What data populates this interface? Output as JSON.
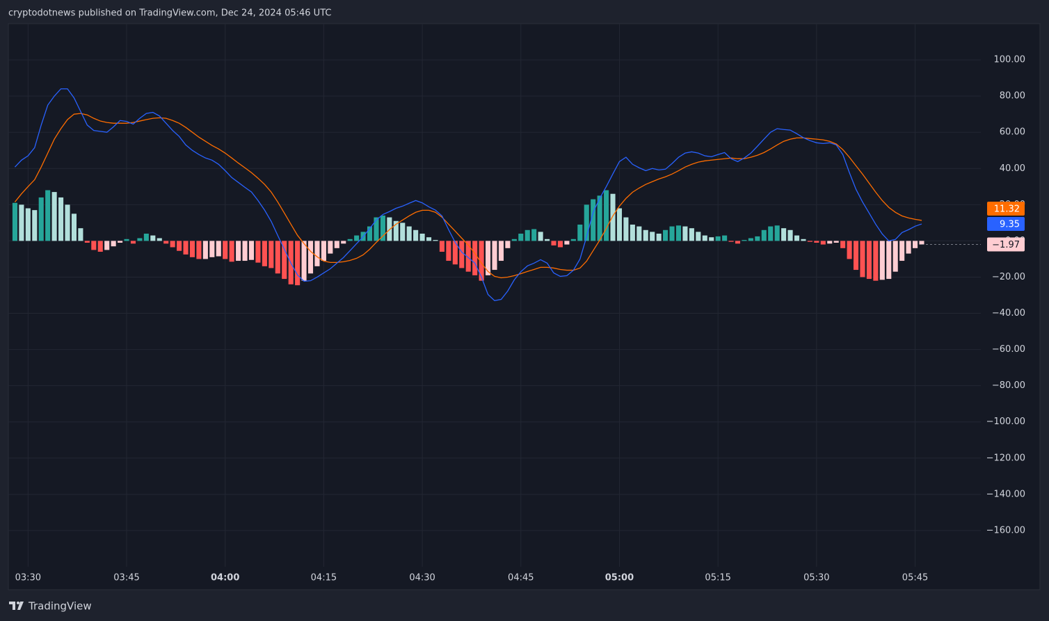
{
  "header": {
    "text": "cryptodotnews published on TradingView.com, Dec 24, 2024 05:46 UTC"
  },
  "footer": {
    "brand": "TradingView"
  },
  "chart_data": {
    "type": "combo",
    "x": [
      "03:28",
      "03:29",
      "03:30",
      "03:31",
      "03:32",
      "03:33",
      "03:34",
      "03:35",
      "03:36",
      "03:37",
      "03:38",
      "03:39",
      "03:40",
      "03:41",
      "03:42",
      "03:43",
      "03:44",
      "03:45",
      "03:46",
      "03:47",
      "03:48",
      "03:49",
      "03:50",
      "03:51",
      "03:52",
      "03:53",
      "03:54",
      "03:55",
      "03:56",
      "03:57",
      "03:58",
      "03:59",
      "04:00",
      "04:01",
      "04:02",
      "04:03",
      "04:04",
      "04:05",
      "04:06",
      "04:07",
      "04:08",
      "04:09",
      "04:10",
      "04:11",
      "04:12",
      "04:13",
      "04:14",
      "04:15",
      "04:16",
      "04:17",
      "04:18",
      "04:19",
      "04:20",
      "04:21",
      "04:22",
      "04:23",
      "04:24",
      "04:25",
      "04:26",
      "04:27",
      "04:28",
      "04:29",
      "04:30",
      "04:31",
      "04:32",
      "04:33",
      "04:34",
      "04:35",
      "04:36",
      "04:37",
      "04:38",
      "04:39",
      "04:40",
      "04:41",
      "04:42",
      "04:43",
      "04:44",
      "04:45",
      "04:46",
      "04:47",
      "04:48",
      "04:49",
      "04:50",
      "04:51",
      "04:52",
      "04:53",
      "04:54",
      "04:55",
      "04:56",
      "04:57",
      "04:58",
      "04:59",
      "05:00",
      "05:01",
      "05:02",
      "05:03",
      "05:04",
      "05:05",
      "05:06",
      "05:07",
      "05:08",
      "05:09",
      "05:10",
      "05:11",
      "05:12",
      "05:13",
      "05:14",
      "05:15",
      "05:16",
      "05:17",
      "05:18",
      "05:19",
      "05:20",
      "05:21",
      "05:22",
      "05:23",
      "05:24",
      "05:25",
      "05:26",
      "05:27",
      "05:28",
      "05:29",
      "05:30",
      "05:31",
      "05:32",
      "05:33",
      "05:34",
      "05:35",
      "05:36",
      "05:37",
      "05:38",
      "05:39",
      "05:40",
      "05:41",
      "05:42",
      "05:43",
      "05:44",
      "05:45",
      "05:46"
    ],
    "xlim": [
      "03:27",
      "05:55"
    ],
    "xticks": [
      "03:30",
      "03:45",
      "04:00",
      "04:15",
      "04:30",
      "04:45",
      "05:00",
      "05:15",
      "05:30",
      "05:45"
    ],
    "ylim": [
      -180,
      120
    ],
    "yticks": [
      {
        "value": 100,
        "label": "100.00"
      },
      {
        "value": 80,
        "label": "80.00"
      },
      {
        "value": 60,
        "label": "60.00"
      },
      {
        "value": 40,
        "label": "40.00"
      },
      {
        "value": 20,
        "label": "20.00"
      },
      {
        "value": 0,
        "label": "0.00"
      },
      {
        "value": -20,
        "label": "−20.00"
      },
      {
        "value": -40,
        "label": "−40.00"
      },
      {
        "value": -60,
        "label": "−60.00"
      },
      {
        "value": -80,
        "label": "−80.00"
      },
      {
        "value": -100,
        "label": "−100.00"
      },
      {
        "value": -120,
        "label": "−120.00"
      },
      {
        "value": -140,
        "label": "−140.00"
      },
      {
        "value": -160,
        "label": "−160.00"
      }
    ],
    "grid": true,
    "series": [
      {
        "type": "bar",
        "colors": {
          "grow_above": "#26a69a",
          "fall_above": "#b2dfdb",
          "grow_below": "#ffcdd2",
          "fall_below": "#ff5252"
        },
        "values": [
          21,
          20,
          18,
          17,
          24,
          28,
          27,
          24,
          20,
          15,
          7,
          -1,
          -5,
          -6,
          -5,
          -3,
          -1,
          1,
          -1.5,
          1.5,
          4,
          3,
          1.5,
          -1.5,
          -3.5,
          -5.5,
          -7.5,
          -9,
          -10,
          -10,
          -9,
          -8.5,
          -10,
          -11.5,
          -11,
          -11,
          -10.5,
          -12,
          -14,
          -15,
          -18,
          -21,
          -24,
          -24.5,
          -22,
          -18,
          -14,
          -11,
          -7,
          -4,
          -1.5,
          1,
          3,
          5,
          8,
          13,
          14,
          13,
          11,
          10,
          8,
          6,
          4,
          2,
          0.5,
          -6,
          -11,
          -13,
          -15,
          -17,
          -19,
          -22,
          -19,
          -16,
          -11,
          -4,
          1,
          4,
          6,
          6.5,
          5,
          1,
          -2.5,
          -3.5,
          -2,
          1,
          9,
          20,
          23,
          25,
          28,
          26,
          18,
          13,
          9,
          8,
          6,
          5,
          4,
          6,
          8,
          8.5,
          8,
          7,
          5,
          3,
          2,
          2.5,
          3,
          -0.5,
          -1.5,
          0.5,
          1.5,
          2.5,
          6,
          8,
          8.5,
          7,
          6,
          3,
          1,
          -0.5,
          -1,
          -2,
          -1.5,
          -1,
          -4,
          -10,
          -16,
          -20,
          -21,
          -22,
          -21.5,
          -21,
          -17,
          -11,
          -7,
          -4,
          -1.97
        ],
        "value_labels": [
          null,
          null,
          null,
          null,
          null,
          null,
          null,
          null,
          null,
          null,
          null,
          null,
          null,
          null,
          null,
          null,
          null,
          null,
          null,
          null,
          null,
          null,
          null,
          null,
          null,
          null,
          null,
          null,
          null,
          null,
          null,
          null,
          null,
          null,
          null,
          null,
          null,
          null,
          null,
          null,
          null,
          null,
          null,
          null,
          null,
          null,
          null,
          null,
          null,
          null,
          null,
          null,
          null,
          null,
          null,
          null,
          null,
          null,
          null,
          null,
          null,
          null,
          null,
          null,
          null,
          null,
          null,
          null,
          null,
          null,
          null,
          null,
          null,
          null,
          null,
          null,
          null,
          null,
          null,
          null,
          null,
          null,
          null,
          null,
          null,
          null,
          null,
          null,
          null,
          null,
          null,
          null,
          null,
          null,
          null,
          null,
          null,
          null,
          null,
          null,
          null,
          null,
          null,
          null,
          null,
          null,
          null,
          null,
          null,
          null,
          null,
          null,
          null,
          null,
          null,
          null,
          null,
          null,
          null,
          null,
          null,
          null,
          null,
          null,
          null,
          null,
          null,
          null,
          null,
          null,
          null,
          null,
          null,
          null,
          null,
          null,
          null,
          null,
          "−1.97"
        ]
      },
      {
        "type": "line",
        "color": "#ff6d00",
        "values": [
          21.5,
          26,
          30,
          33.8,
          40.8,
          48.5,
          56.2,
          62,
          67,
          70,
          70.4,
          69.6,
          67.7,
          66.2,
          65.4,
          65,
          65,
          65,
          65.4,
          66.2,
          67,
          67.7,
          68,
          67.7,
          66.5,
          65,
          62.7,
          60,
          57.3,
          55,
          52.7,
          50.8,
          48.5,
          45.8,
          43,
          40.4,
          37.7,
          34.6,
          31.2,
          27,
          21.5,
          15.4,
          9.2,
          3.1,
          -1.5,
          -5.8,
          -8.8,
          -11.2,
          -11.9,
          -11.9,
          -11.5,
          -10.8,
          -9.6,
          -7.7,
          -4.6,
          -0.8,
          2.7,
          6.2,
          9.2,
          11.5,
          13.8,
          15.8,
          16.9,
          16.9,
          15.8,
          13.1,
          9.2,
          5.4,
          1.5,
          -2.3,
          -6.9,
          -12.3,
          -16.9,
          -19.6,
          -20.4,
          -20,
          -19.2,
          -18.1,
          -16.9,
          -15.8,
          -14.6,
          -14.6,
          -15,
          -15.8,
          -16.2,
          -16.2,
          -15,
          -11.2,
          -5.4,
          0.4,
          6.9,
          13.8,
          19.2,
          23.5,
          26.9,
          29.2,
          31.2,
          32.7,
          34.2,
          35.4,
          36.9,
          38.8,
          40.8,
          42.3,
          43.5,
          44.2,
          44.6,
          45,
          45.4,
          45.8,
          45.4,
          45.4,
          46.2,
          47.3,
          48.8,
          50.8,
          53,
          55,
          56.2,
          56.9,
          56.9,
          56.5,
          56.2,
          55.8,
          55,
          53.5,
          50.4,
          46.2,
          41.5,
          36.9,
          31.9,
          26.9,
          22.3,
          18.5,
          15.8,
          13.8,
          12.7,
          11.9,
          11.32
        ]
      },
      {
        "type": "line",
        "color": "#2962ff",
        "values": [
          40.8,
          44.6,
          47,
          51.5,
          64,
          75,
          80,
          84,
          84,
          79,
          71.5,
          64,
          61,
          60.5,
          60,
          63,
          66.5,
          66,
          64.5,
          67.7,
          70.4,
          71,
          69,
          65,
          61,
          57.7,
          53,
          50,
          47.7,
          45.8,
          44.6,
          42.3,
          38.8,
          35,
          32.3,
          29.6,
          27,
          22.3,
          17,
          10.8,
          3,
          -4.6,
          -12.3,
          -18.8,
          -22.3,
          -22,
          -20,
          -17.7,
          -15.4,
          -12.3,
          -9.2,
          -5.4,
          -1.5,
          2.3,
          6.9,
          11.5,
          14.6,
          16.2,
          18,
          19.2,
          20.8,
          22.3,
          21,
          18.8,
          17,
          13.8,
          6.2,
          -0.8,
          -6.2,
          -9.2,
          -12.3,
          -20,
          -29.6,
          -33,
          -32.3,
          -27.7,
          -21.5,
          -17,
          -13.8,
          -12.3,
          -10.4,
          -12.3,
          -17.7,
          -19.6,
          -19.2,
          -16.2,
          -10,
          2.3,
          15.8,
          23.5,
          30,
          37,
          43.8,
          46.2,
          42.3,
          40.4,
          38.8,
          40,
          39.2,
          39.6,
          42.7,
          46.2,
          48.5,
          49.2,
          48.5,
          47,
          46.5,
          47.7,
          48.8,
          45.4,
          43.8,
          45.8,
          48.5,
          52.3,
          56.2,
          60,
          62,
          61.5,
          61.2,
          59.2,
          57,
          55.4,
          54.2,
          53.8,
          54.2,
          53,
          47.7,
          37.7,
          28.5,
          21.5,
          15.4,
          9.2,
          3.8,
          0,
          0.8,
          4.6,
          6.2,
          8.1,
          9.35
        ]
      }
    ]
  }
}
